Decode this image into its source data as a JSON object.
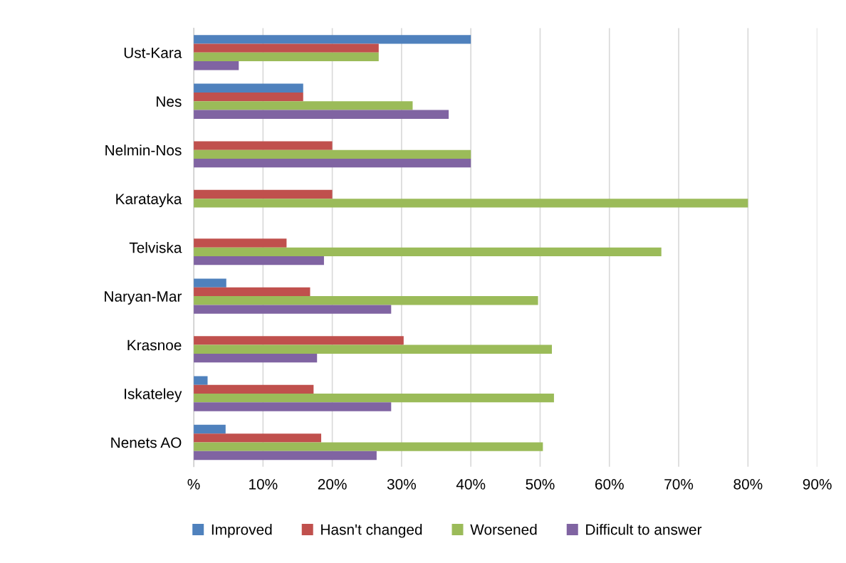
{
  "chart_data": {
    "type": "bar",
    "orientation": "horizontal",
    "categories": [
      "Ust-Kara",
      "Nes",
      "Nelmin-Nos",
      "Karatayka",
      "Telviska",
      "Naryan-Mar",
      "Krasnoe",
      "Iskateley",
      "Nenets AO"
    ],
    "series": [
      {
        "name": "Improved",
        "color": "#4f81bd",
        "values": [
          40,
          15.8,
          null,
          null,
          null,
          4.7,
          null,
          2,
          4.6
        ]
      },
      {
        "name": "Hasn't changed",
        "color": "#c0504d",
        "values": [
          26.7,
          15.8,
          20,
          20,
          13.4,
          16.8,
          30.3,
          17.3,
          18.4
        ]
      },
      {
        "name": "Worsened",
        "color": "#9bbb59",
        "values": [
          26.7,
          31.6,
          40,
          80,
          67.5,
          49.7,
          51.7,
          52,
          50.4
        ]
      },
      {
        "name": "Difficult to answer",
        "color": "#8064a2",
        "values": [
          6.5,
          36.8,
          40,
          null,
          18.8,
          28.5,
          17.8,
          28.5,
          26.4
        ]
      }
    ],
    "xlim": [
      0,
      90
    ],
    "xticks": [
      {
        "value": 0,
        "label": "%"
      },
      {
        "value": 10,
        "label": "10%"
      },
      {
        "value": 20,
        "label": "20%"
      },
      {
        "value": 30,
        "label": "30%"
      },
      {
        "value": 40,
        "label": "40%"
      },
      {
        "value": 50,
        "label": "50%"
      },
      {
        "value": 60,
        "label": "60%"
      },
      {
        "value": 70,
        "label": "70%"
      },
      {
        "value": 80,
        "label": "80%"
      },
      {
        "value": 90,
        "label": "90%"
      }
    ],
    "grid": "x",
    "legend": "bottom"
  }
}
